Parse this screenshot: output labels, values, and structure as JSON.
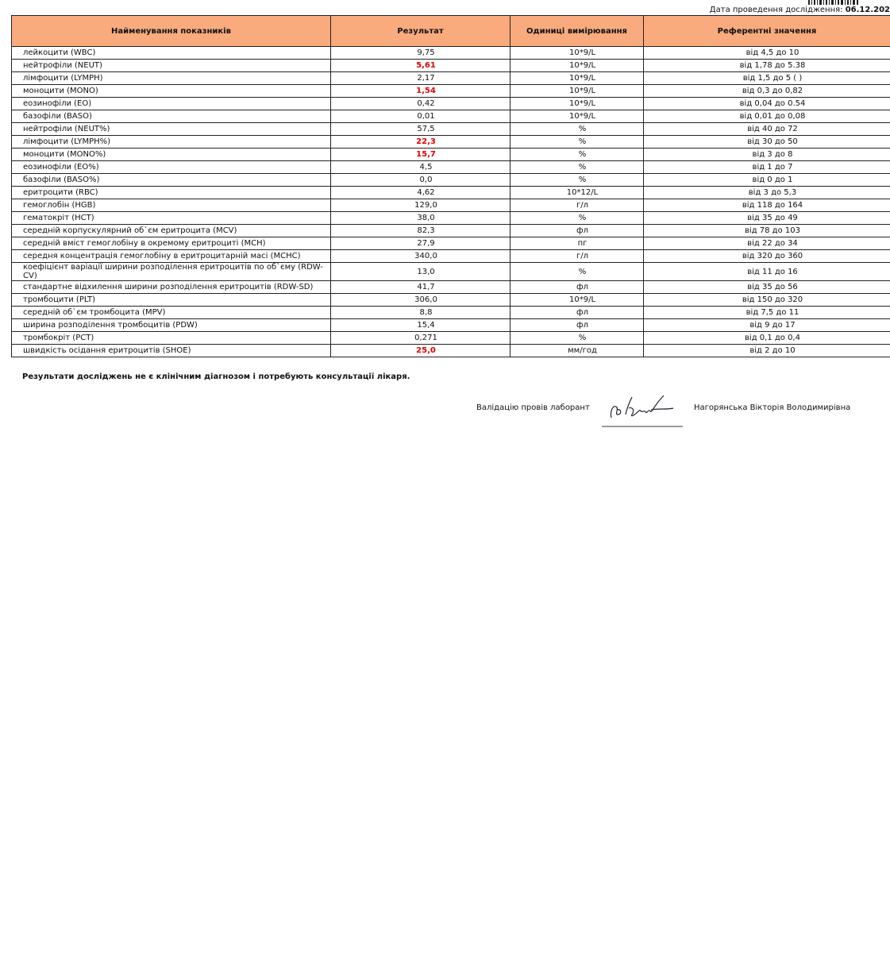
{
  "header": {
    "date_label": "Дата проведення дослідження:",
    "date": "06.12.202"
  },
  "table": {
    "header": [
      "Найменування показників",
      "Результат",
      "Одиниці вимірювання",
      "Референтні значення"
    ],
    "rows": [
      {
        "cells": [
          "лейкоцити (WBC)",
          "9,75",
          "10*9/L",
          "від 4,5 до 10"
        ]
      },
      {
        "cells": [
          "нейтрофіли (NEUT)",
          "5,61",
          "10*9/L",
          "від 1,78 до 5.38"
        ],
        "abnormal": true
      },
      {
        "cells": [
          "лімфоцити (LYMPH)",
          "2,17",
          "10*9/L",
          "від 1,5 до 5 ( )"
        ]
      },
      {
        "cells": [
          "моноцити (MONO)",
          "1,54",
          "10*9/L",
          "від 0,3 до 0,82"
        ],
        "abnormal": true
      },
      {
        "cells": [
          "еозинофіли (EO)",
          "0,42",
          "10*9/L",
          "від 0,04 до 0.54"
        ]
      },
      {
        "cells": [
          "базофіли (BASO)",
          "0,01",
          "10*9/L",
          "від 0,01 до 0,08"
        ]
      },
      {
        "cells": [
          "нейтрофіли (NEUT%)",
          "57,5",
          "%",
          "від 40 до 72"
        ]
      },
      {
        "cells": [
          "лімфоцити (LYMPH%)",
          "22,3",
          "%",
          "від 30 до 50"
        ],
        "abnormal": true
      },
      {
        "cells": [
          "моноцити (MONO%)",
          "15,7",
          "%",
          "від 3 до 8"
        ],
        "abnormal": true
      },
      {
        "cells": [
          "еозинофіли (EO%)",
          "4,5",
          "%",
          "від 1 до 7"
        ]
      },
      {
        "cells": [
          "базофіли (BASO%)",
          "0,0",
          "%",
          "від 0 до 1"
        ]
      },
      {
        "cells": [
          "еритроцити (RBC)",
          "4,62",
          "10*12/L",
          "від 3 до 5,3"
        ]
      },
      {
        "cells": [
          "гемоглобін (HGB)",
          "129,0",
          "г/л",
          "від 118 до 164"
        ]
      },
      {
        "cells": [
          "гематокріт (HCT)",
          "38,0",
          "%",
          "від 35 до 49"
        ]
      },
      {
        "cells": [
          "середній корпускулярний об`єм еритроцита (MCV)",
          "82,3",
          "фл",
          "від 78 до 103"
        ]
      },
      {
        "cells": [
          "середній вміст гемоглобіну в окремому еритроциті (MCH)",
          "27,9",
          "пг",
          "від 22 до 34"
        ]
      },
      {
        "cells": [
          "середня концентрація гемоглобіну в еритроцитарній масі (MCHC)",
          "340,0",
          "г/л",
          "від 320 до 360"
        ]
      },
      {
        "cells": [
          "коефіцієнт варіації ширини розподілення еритроцитів по об`єму (RDW-CV)",
          "13,0",
          "%",
          "від 11 до 16"
        ]
      },
      {
        "cells": [
          "стандартне відхилення ширини розподілення еритроцитів (RDW-SD)",
          "41,7",
          "фл",
          "від 35 до 56"
        ]
      },
      {
        "cells": [
          "тромбоцити (PLT)",
          "306,0",
          "10*9/L",
          "від 150 до 320"
        ]
      },
      {
        "cells": [
          "середній об`єм тромбоцита (MPV)",
          "8,8",
          "фл",
          "від 7,5 до 11"
        ]
      },
      {
        "cells": [
          "ширина розподілення тромбоцитів (PDW)",
          "15,4",
          "фл",
          "від 9 до 17"
        ]
      },
      {
        "cells": [
          "тромбокріт (PCT)",
          "0,271",
          "%",
          "від 0,1 до 0,4"
        ]
      },
      {
        "cells": [
          "швидкість осідання еритроцитів (SHOE)",
          "25,0",
          "мм/год",
          "від 2 до 10"
        ],
        "abnormal": true
      }
    ]
  },
  "footer": {
    "disclaimer": "Результати досліджень не є клінічним діагнозом і потребують консультації лікаря.",
    "validation_label": "Валідацію провів лаборант",
    "lab_technician": "Нагорянська Вікторія Володимирівна"
  }
}
